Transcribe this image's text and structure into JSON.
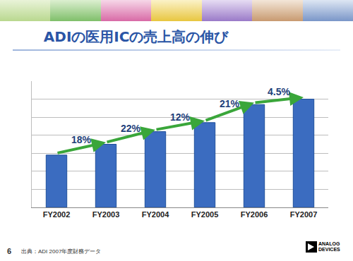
{
  "chart_data": {
    "type": "bar",
    "title": "ADIの医用ICの売上高の伸び",
    "categories": [
      "FY2002",
      "FY2003",
      "FY2004",
      "FY2005",
      "FY2006",
      "FY2007"
    ],
    "values": [
      2.9,
      3.5,
      4.2,
      4.7,
      5.7,
      6.0
    ],
    "color": "#3b6cc0",
    "ylim": [
      0,
      7
    ],
    "yticks": [
      0,
      1,
      2,
      3,
      4,
      5,
      6,
      7
    ],
    "grid": true,
    "tick_labels": "x",
    "annotations": [
      "18%",
      "22%",
      "12%",
      "21%",
      "4.5%"
    ]
  },
  "footer": {
    "page_number": "6",
    "source": "出典：ADI 2007年度財務データ"
  },
  "logo": "ANALOG DEVICES"
}
